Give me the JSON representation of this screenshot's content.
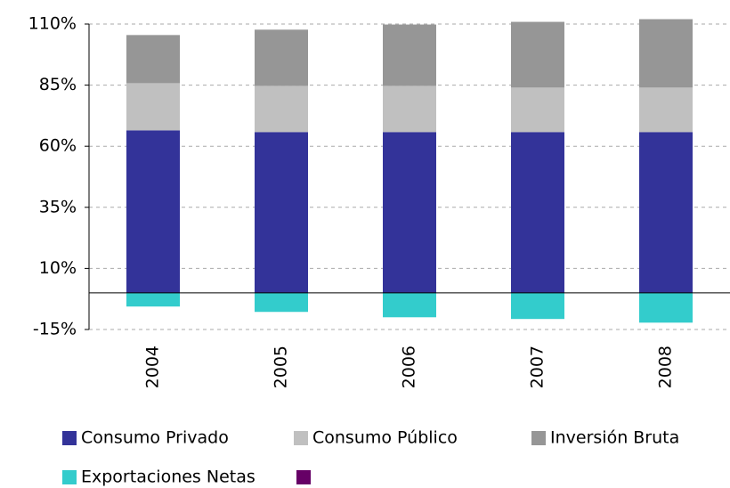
{
  "chart_data": {
    "type": "stacked_bar",
    "categories": [
      "2004",
      "2005",
      "2006",
      "2007",
      "2008"
    ],
    "series": [
      {
        "name": "Consumo Privado",
        "color": "#333399",
        "values": [
          66.5,
          65.8,
          65.8,
          65.8,
          65.8
        ]
      },
      {
        "name": "Consumo Público",
        "color": "#c0c0c0",
        "values": [
          19.3,
          18.9,
          18.9,
          18.2,
          18.2
        ]
      },
      {
        "name": "Inversión Bruta",
        "color": "#969696",
        "values": [
          19.7,
          23,
          25.1,
          26.9,
          28
        ]
      },
      {
        "name": "Exportaciones Netas",
        "color": "#33cccc",
        "values": [
          -5.6,
          -7.8,
          -10,
          -10.7,
          -12.2
        ]
      },
      {
        "name": null,
        "color": "#660066",
        "values": [
          null,
          null,
          null,
          null,
          null
        ]
      }
    ],
    "ylim": [
      -15,
      110
    ],
    "yticks": [
      {
        "value": -15,
        "label": "-15%"
      },
      {
        "value": 10,
        "label": "10%"
      },
      {
        "value": 35,
        "label": "35%"
      },
      {
        "value": 60,
        "label": "60%"
      },
      {
        "value": 85,
        "label": "85%"
      },
      {
        "value": 110,
        "label": "110%"
      }
    ],
    "grid": true
  }
}
